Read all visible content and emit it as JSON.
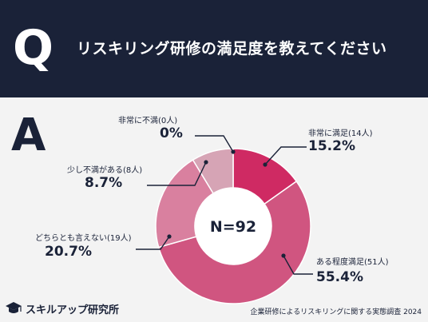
{
  "header": {
    "q_label": "Q",
    "question": "リスキリング研修の満足度を教えてください"
  },
  "answer_label": "A",
  "chart_data": {
    "type": "pie",
    "subtype": "donut",
    "center_label": "N=92",
    "slices": [
      {
        "label": "非常に満足(14人)",
        "percent_label": "15.2%",
        "value": 15.2,
        "count": 14,
        "color": "#cf2a63"
      },
      {
        "label": "ある程度満足(51人)",
        "percent_label": "55.4%",
        "value": 55.4,
        "count": 51,
        "color": "#d05580"
      },
      {
        "label": "どちらとも言えない(19人)",
        "percent_label": "20.7%",
        "value": 20.7,
        "count": 19,
        "color": "#d9809f"
      },
      {
        "label": "少し不満がある(8人)",
        "percent_label": "8.7%",
        "value": 8.7,
        "count": 8,
        "color": "#d6a4b5"
      },
      {
        "label": "非常に不満(0人)",
        "percent_label": "0%",
        "value": 0,
        "count": 0,
        "color": "#d6a4b5"
      }
    ]
  },
  "footer": {
    "logo_text": "スキルアップ研究所",
    "source": "企業研修によるリスキリングに関する実態調査 2024"
  }
}
